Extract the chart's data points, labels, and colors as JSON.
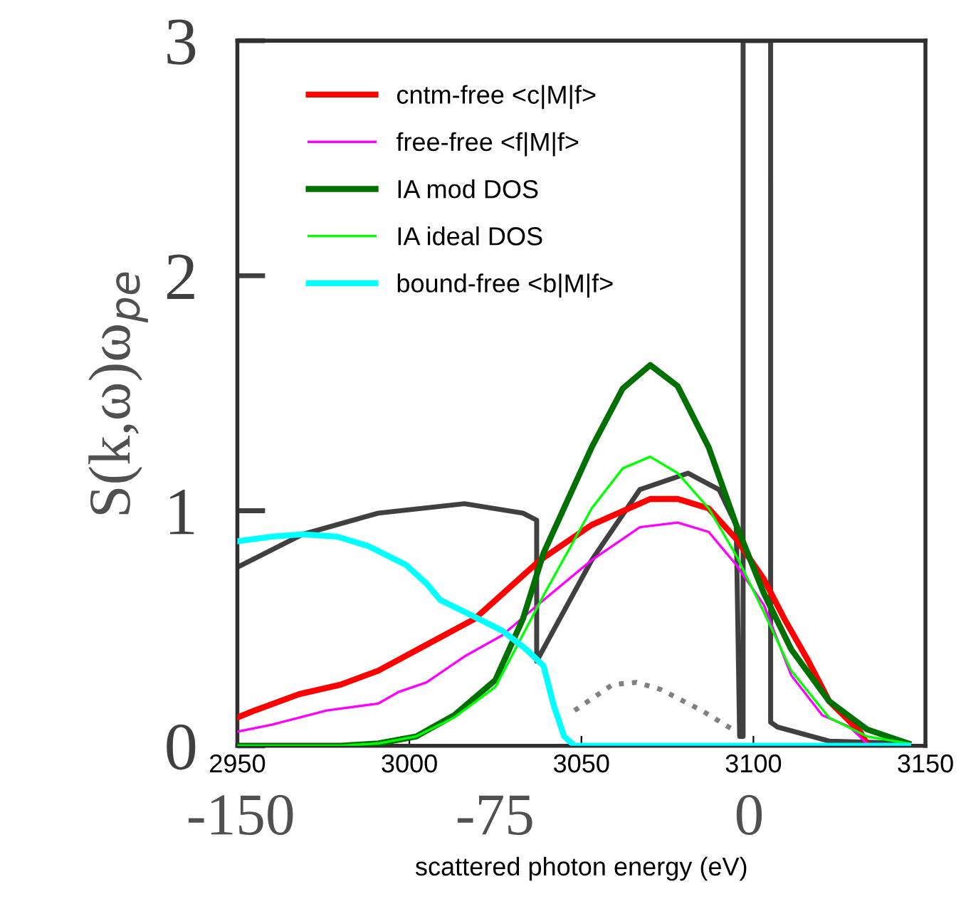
{
  "chart_data": {
    "type": "line",
    "xlabel": "scattered photon energy (eV)",
    "ylabel": "S(k,ω)ω$_{pe}$",
    "xlim": [
      2950,
      3150
    ],
    "xticks": [
      2950,
      3000,
      3050,
      3100,
      3150
    ],
    "x2lim": [
      -151,
      52
    ],
    "x2ticks": [
      -150,
      -75,
      0
    ],
    "ylim": [
      0,
      3
    ],
    "yticks": [
      0,
      1,
      2,
      3
    ],
    "grid": false,
    "legend": "top left",
    "marker": "none",
    "series": [
      {
        "name": "cntm-free <c|M|f>",
        "color": "#ff0000",
        "x": [
          2950,
          2955,
          2968,
          2980,
          2991,
          3005,
          3019,
          3038,
          3053,
          3070,
          3078,
          3087,
          3095,
          3103,
          3109,
          3116,
          3122,
          3131,
          3133
        ],
        "values": [
          0.12,
          0.15,
          0.22,
          0.26,
          0.32,
          0.43,
          0.54,
          0.79,
          0.94,
          1.05,
          1.05,
          1.01,
          0.88,
          0.71,
          0.54,
          0.36,
          0.19,
          0.06,
          0.01
        ]
      },
      {
        "name": "free-free <f|M|f>",
        "color": "#ff00ff",
        "x": [
          2950,
          2960,
          2976,
          2991,
          2997,
          3005,
          3016,
          3027,
          3039,
          3053,
          3067,
          3078,
          3087,
          3095,
          3103,
          3111,
          3120,
          3128,
          3133
        ],
        "values": [
          0.06,
          0.09,
          0.15,
          0.18,
          0.23,
          0.27,
          0.38,
          0.47,
          0.62,
          0.79,
          0.93,
          0.95,
          0.91,
          0.77,
          0.6,
          0.3,
          0.13,
          0.08,
          0.01
        ]
      },
      {
        "name": "IA mod DOS",
        "color": "#007000",
        "x": [
          2950,
          2980,
          2991,
          3002,
          3013,
          3025,
          3033,
          3039,
          3053,
          3062,
          3070,
          3078,
          3087,
          3095,
          3103,
          3111,
          3122,
          3133,
          3145
        ],
        "values": [
          0,
          0,
          0.01,
          0.04,
          0.13,
          0.28,
          0.54,
          0.82,
          1.27,
          1.52,
          1.62,
          1.53,
          1.27,
          0.94,
          0.65,
          0.41,
          0.19,
          0.07,
          0.01
        ]
      },
      {
        "name": "IA ideal DOS",
        "color": "#00ff00",
        "x": [
          2950,
          2980,
          2991,
          3002,
          3013,
          3025,
          3039,
          3053,
          3062,
          3070,
          3078,
          3087,
          3095,
          3103,
          3111,
          3122,
          3133,
          3145
        ],
        "values": [
          0,
          0,
          0.01,
          0.04,
          0.12,
          0.25,
          0.64,
          1.01,
          1.18,
          1.23,
          1.16,
          1.01,
          0.81,
          0.57,
          0.32,
          0.12,
          0.04,
          0.01
        ]
      },
      {
        "name": "bound-free <b|M|f>",
        "color": "#00ffff",
        "x": [
          2950,
          2960,
          2969,
          2979,
          2988,
          2999,
          3005,
          3009,
          3016,
          3027,
          3034,
          3039,
          3042,
          3045,
          3048,
          3145
        ],
        "values": [
          0.87,
          0.89,
          0.9,
          0.89,
          0.85,
          0.77,
          0.69,
          0.62,
          0.57,
          0.49,
          0.41,
          0.34,
          0.17,
          0.04,
          0,
          0
        ]
      },
      {
        "color": "#404040",
        "x": [
          2950,
          2969,
          2991,
          3016,
          3033,
          3037,
          3037,
          3053,
          3067,
          3081,
          3090,
          3095,
          3096,
          3097,
          3097,
          3105,
          3105,
          3107,
          3122,
          3145
        ],
        "values": [
          0.76,
          0.9,
          0.99,
          1.03,
          0.99,
          0.96,
          0.36,
          0.79,
          1.09,
          1.16,
          1.09,
          0.94,
          0.04,
          0.04,
          3,
          3,
          0.1,
          0.08,
          0.02,
          0.01
        ]
      },
      {
        "color": "#808080",
        "line_style": "dotted",
        "x": [
          3048,
          3059,
          3066,
          3073,
          3085,
          3095
        ],
        "values": [
          0.15,
          0.26,
          0.27,
          0.24,
          0.15,
          0.06
        ]
      }
    ]
  }
}
